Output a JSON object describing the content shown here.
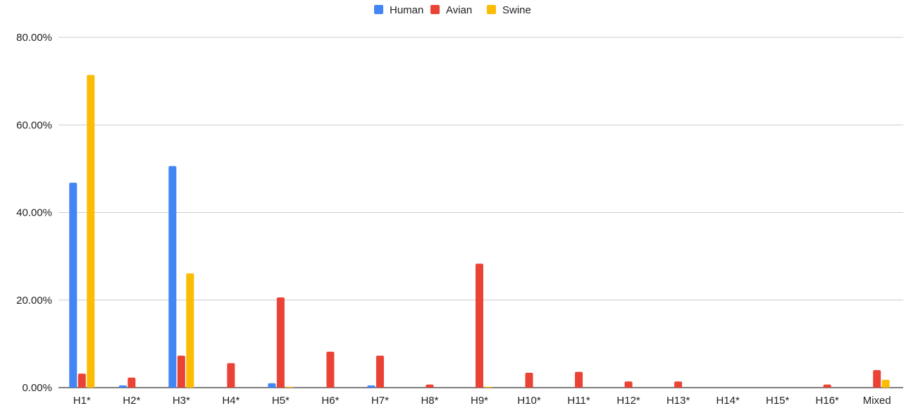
{
  "chart_data": {
    "type": "bar",
    "title": "",
    "xlabel": "",
    "ylabel": "",
    "ylim": [
      0,
      80
    ],
    "yticks": [
      "0.00%",
      "20.00%",
      "40.00%",
      "60.00%",
      "80.00%"
    ],
    "grid": true,
    "legend_position": "top",
    "categories": [
      "H1*",
      "H2*",
      "H3*",
      "H4*",
      "H5*",
      "H6*",
      "H7*",
      "H8*",
      "H9*",
      "H10*",
      "H11*",
      "H12*",
      "H13*",
      "H14*",
      "H15*",
      "H16*",
      "Mixed"
    ],
    "series": [
      {
        "name": "Human",
        "color": "#4285f4",
        "values": [
          46.8,
          0.5,
          50.6,
          0,
          1.0,
          0,
          0.5,
          0,
          0,
          0,
          0,
          0,
          0,
          0,
          0,
          0,
          0
        ]
      },
      {
        "name": "Avian",
        "color": "#ea4335",
        "values": [
          3.2,
          2.3,
          7.3,
          5.6,
          20.6,
          8.2,
          7.3,
          0.7,
          28.3,
          3.4,
          3.6,
          1.4,
          1.4,
          0,
          0,
          0.7,
          4.0
        ]
      },
      {
        "name": "Swine",
        "color": "#fbbc04",
        "values": [
          71.4,
          0,
          26.1,
          0,
          0.2,
          0,
          0,
          0,
          0.2,
          0,
          0,
          0,
          0,
          0,
          0,
          0,
          1.8
        ]
      }
    ]
  }
}
